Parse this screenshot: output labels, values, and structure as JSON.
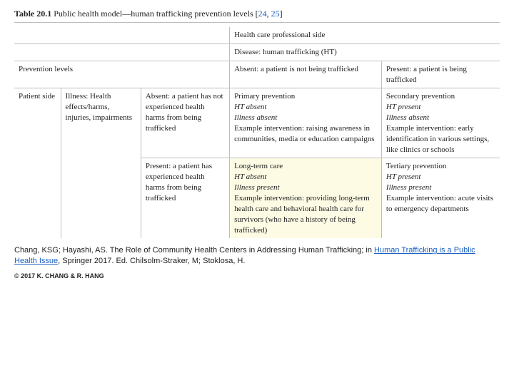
{
  "caption": {
    "label": "Table 20.1",
    "title": "Public health model—human trafficking prevention levels [",
    "ref1": "24",
    "comma": ", ",
    "ref2": "25",
    "close": "]"
  },
  "table": {
    "header_hcp_side": "Health care professional side",
    "header_disease": "Disease: human trafficking (HT)",
    "header_prev_levels": "Prevention levels",
    "header_absent_disease": "Absent: a patient is not being trafficked",
    "header_present_disease": "Present: a patient is being trafficked",
    "patient_side": "Patient side",
    "illness_label": "Illness: Health effects/harms, injuries, impairments",
    "row_absent_illness": "Absent: a patient has not experienced health harms from being trafficked",
    "row_present_illness": "Present: a patient has experienced health harms from being trafficked",
    "cell_primary_title": "Primary prevention",
    "cell_primary_ht": "HT absent",
    "cell_primary_ill": "Illness absent",
    "cell_primary_int": "Example intervention: raising awareness in communities, media or education campaigns",
    "cell_secondary_title": "Secondary prevention",
    "cell_secondary_ht": "HT present",
    "cell_secondary_ill": "Illness absent",
    "cell_secondary_int": "Example intervention: early identification in various settings, like clinics or schools",
    "cell_long_title": "Long-term care",
    "cell_long_ht": "HT absent",
    "cell_long_ill": "Illness present",
    "cell_long_int": "Example intervention: providing long-term health care and behavioral health care for survivors (who have a history of being trafficked)",
    "cell_tert_title": "Tertiary prevention",
    "cell_tert_ht": "HT present",
    "cell_tert_ill": "Illness present",
    "cell_tert_int": "Example intervention: acute visits to emergency departments"
  },
  "citation": {
    "pre": "Chang, KSG; Hayashi, AS. The Role of Community Health Centers in Addressing Human Trafficking; in ",
    "book": "Human Trafficking is a Public Health Issue",
    "post": ", Springer 2017. Ed. Chilsolm-Straker, M; Stoklosa, H."
  },
  "copyright": "© 2017 K. CHANG & R. HANG",
  "colors": {
    "link": "#1a5fbf",
    "highlight_bg": "#fdfbe4",
    "border": "#bfbfbf"
  },
  "col_widths": {
    "c1": "55",
    "c2": "95",
    "c3": "105",
    "c4": "180",
    "c5": "140"
  }
}
